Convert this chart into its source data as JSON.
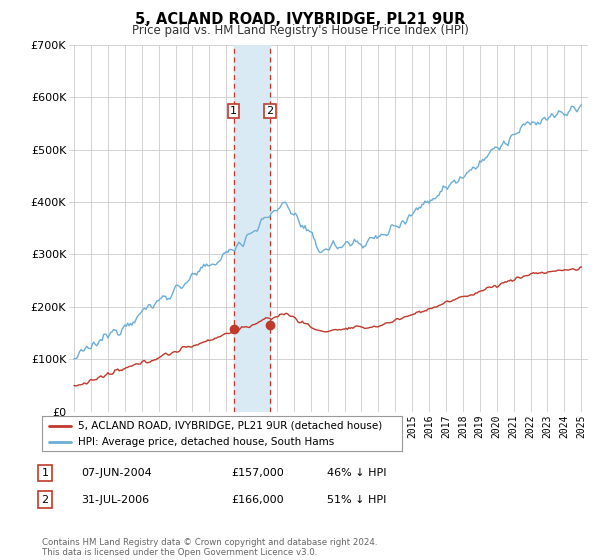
{
  "title": "5, ACLAND ROAD, IVYBRIDGE, PL21 9UR",
  "subtitle": "Price paid vs. HM Land Registry's House Price Index (HPI)",
  "legend_line1": "5, ACLAND ROAD, IVYBRIDGE, PL21 9UR (detached house)",
  "legend_line2": "HPI: Average price, detached house, South Hams",
  "transaction1_label": "1",
  "transaction1_date": "07-JUN-2004",
  "transaction1_price": "£157,000",
  "transaction1_hpi": "46% ↓ HPI",
  "transaction2_label": "2",
  "transaction2_date": "31-JUL-2006",
  "transaction2_price": "£166,000",
  "transaction2_hpi": "51% ↓ HPI",
  "footnote": "Contains HM Land Registry data © Crown copyright and database right 2024.\nThis data is licensed under the Open Government Licence v3.0.",
  "hpi_color": "#6baed6",
  "price_color": "#c0392b",
  "marker_color": "#c0392b",
  "highlight_color": "#daeaf5",
  "vline_color": "#c0392b",
  "ylim_max": 700000,
  "ylim_min": 0,
  "marker1_year": 2004.44,
  "marker2_year": 2006.58,
  "marker1_price": 157000,
  "marker2_price": 166000
}
